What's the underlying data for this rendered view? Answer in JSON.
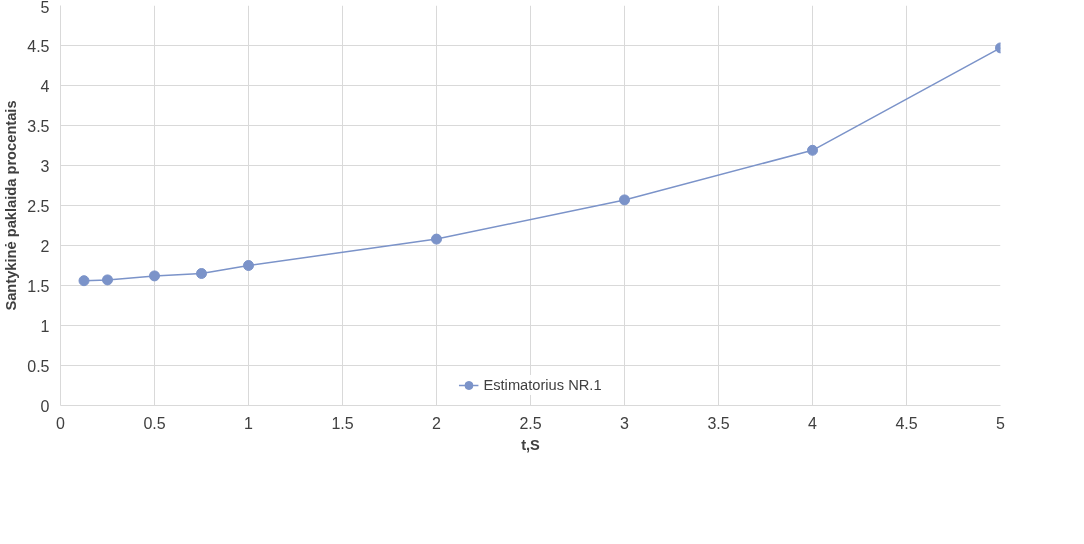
{
  "chart_data": {
    "type": "line",
    "xlabel": "t,S",
    "ylabel": "Santykinė paklaida procentais",
    "x": [
      0.125,
      0.25,
      0.5,
      0.75,
      1,
      2,
      3,
      4,
      5
    ],
    "series": [
      {
        "name": "Estimatorius NR.1",
        "color": "#7b93c9",
        "values": [
          1.56,
          1.57,
          1.62,
          1.65,
          1.75,
          2.08,
          2.57,
          3.19,
          4.47
        ]
      }
    ],
    "xlim": [
      0,
      5
    ],
    "xticks": [
      0,
      0.5,
      1,
      1.5,
      2,
      2.5,
      3,
      3.5,
      4,
      4.5,
      5
    ],
    "ylim": [
      0,
      5
    ],
    "yticks": [
      0,
      0.5,
      1,
      1.5,
      2,
      2.5,
      3,
      3.5,
      4,
      4.5,
      5
    ],
    "grid": true,
    "legend": "bottom",
    "marker": "circle",
    "line_style": "solid"
  }
}
